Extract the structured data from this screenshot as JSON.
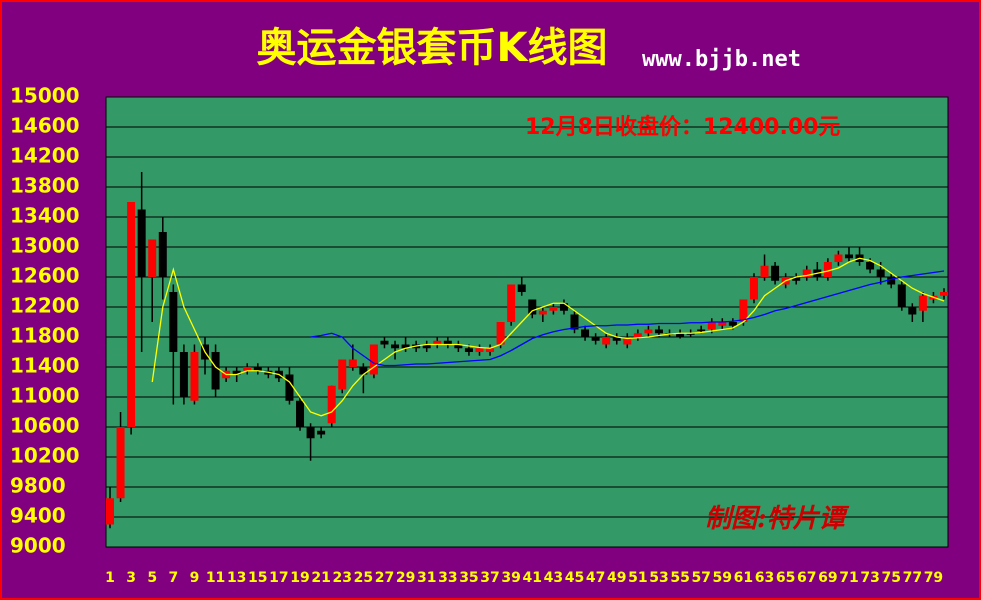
{
  "chart_data": {
    "type": "candlestick",
    "title": "奥运金银套币K线图",
    "subtitle": "www.bjjb.net",
    "annotations": [
      "12月8日收盘价：12400.00元",
      "制图:特片谭"
    ],
    "categories": [
      1,
      null,
      3,
      null,
      5,
      null,
      7,
      null,
      9,
      null,
      11,
      null,
      13,
      null,
      15,
      null,
      17,
      null,
      19,
      null,
      21,
      null,
      23,
      null,
      25,
      null,
      27,
      null,
      29,
      null,
      31,
      null,
      33,
      null,
      35,
      null,
      37,
      null,
      39,
      null,
      41,
      null,
      43,
      null,
      45,
      null,
      47,
      null,
      49,
      null,
      51,
      null,
      53,
      null,
      55,
      null,
      57,
      null,
      59,
      null,
      61,
      null,
      63,
      null,
      65,
      null,
      67,
      null,
      69,
      null,
      71,
      null,
      73,
      null,
      75,
      null,
      77,
      null,
      79,
      null
    ],
    "open": [
      9300,
      9650,
      10600,
      13500,
      12600,
      13200,
      12400,
      11600,
      10950,
      11700,
      11600,
      11250,
      11350,
      11350,
      11400,
      11350,
      11350,
      11300,
      10950,
      10600,
      10550,
      10650,
      11100,
      11400,
      11400,
      11300,
      11750,
      11700,
      11700,
      11700,
      11700,
      11700,
      11750,
      11700,
      11650,
      11600,
      11600,
      11700,
      12000,
      12500,
      12300,
      12100,
      12150,
      12250,
      12100,
      11900,
      11800,
      11700,
      11800,
      11700,
      11800,
      11850,
      11900,
      11850,
      11850,
      11850,
      11900,
      11900,
      11950,
      12000,
      12000,
      12300,
      12600,
      12750,
      12500,
      12600,
      12600,
      12700,
      12600,
      12800,
      12900,
      12900,
      12800,
      12700,
      12600,
      12500,
      12200,
      12150,
      12300,
      12350
    ],
    "high": [
      9800,
      10800,
      13600,
      14000,
      13100,
      13400,
      12500,
      11700,
      11700,
      11800,
      11700,
      11400,
      11400,
      11450,
      11450,
      11400,
      11400,
      11400,
      11000,
      10650,
      10600,
      11150,
      11500,
      11700,
      11450,
      11700,
      11800,
      11750,
      11800,
      11750,
      11750,
      11800,
      11800,
      11750,
      11700,
      11700,
      11700,
      12000,
      12500,
      12600,
      12300,
      12200,
      12250,
      12300,
      12150,
      11950,
      11850,
      11850,
      11850,
      11850,
      11900,
      11950,
      11950,
      11900,
      11900,
      11900,
      11950,
      12050,
      12050,
      12050,
      12300,
      12650,
      12900,
      12800,
      12650,
      12650,
      12750,
      12800,
      12850,
      12950,
      13000,
      13000,
      12850,
      12800,
      12650,
      12550,
      12250,
      12400,
      12400,
      12450
    ],
    "low": [
      9250,
      9600,
      10500,
      11600,
      12000,
      12300,
      10900,
      10900,
      10900,
      11300,
      11000,
      11200,
      11200,
      11300,
      11300,
      11250,
      11200,
      10900,
      10550,
      10150,
      10450,
      10600,
      11050,
      11350,
      11050,
      11250,
      11650,
      11500,
      11600,
      11600,
      11600,
      11650,
      11650,
      11600,
      11550,
      11550,
      11550,
      11650,
      11950,
      12350,
      12050,
      12000,
      12100,
      12100,
      11850,
      11750,
      11700,
      11650,
      11700,
      11650,
      11750,
      11800,
      11800,
      11800,
      11780,
      11800,
      11850,
      11850,
      11900,
      11900,
      11950,
      12250,
      12550,
      12500,
      12450,
      12500,
      12550,
      12550,
      12550,
      12750,
      12800,
      12750,
      12650,
      12500,
      12450,
      12150,
      12000,
      12000,
      12250,
      12300
    ],
    "close": [
      9650,
      10600,
      13600,
      12600,
      13100,
      12600,
      11600,
      11000,
      11600,
      11500,
      11100,
      11350,
      11300,
      11400,
      11350,
      11300,
      11250,
      10950,
      10600,
      10450,
      10500,
      11150,
      11500,
      11500,
      11300,
      11700,
      11700,
      11650,
      11650,
      11650,
      11650,
      11750,
      11700,
      11650,
      11600,
      11650,
      11650,
      12000,
      12500,
      12400,
      12100,
      12150,
      12200,
      12150,
      11900,
      11800,
      11750,
      11800,
      11750,
      11800,
      11850,
      11900,
      11850,
      11830,
      11800,
      11840,
      11880,
      12000,
      12000,
      11950,
      12300,
      12600,
      12750,
      12550,
      12600,
      12550,
      12700,
      12600,
      12800,
      12900,
      12850,
      12800,
      12700,
      12600,
      12500,
      12200,
      12100,
      12350,
      12350,
      12400
    ],
    "lines": [
      {
        "color": "#ffff00",
        "values": [
          null,
          null,
          null,
          null,
          11200,
          12200,
          12700,
          12200,
          11900,
          11600,
          11400,
          11300,
          11300,
          11350,
          11350,
          11330,
          11300,
          11200,
          11000,
          10800,
          10750,
          10800,
          10950,
          11150,
          11300,
          11400,
          11500,
          11600,
          11650,
          11680,
          11700,
          11700,
          11700,
          11700,
          11680,
          11660,
          11650,
          11700,
          11850,
          12000,
          12150,
          12200,
          12250,
          12250,
          12150,
          12050,
          11950,
          11850,
          11800,
          11780,
          11790,
          11800,
          11820,
          11840,
          11850,
          11850,
          11860,
          11880,
          11900,
          11920,
          12000,
          12150,
          12350,
          12450,
          12550,
          12600,
          12620,
          12650,
          12680,
          12720,
          12800,
          12850,
          12820,
          12750,
          12650,
          12550,
          12450,
          12380,
          12330,
          12280
        ]
      },
      {
        "color": "#0000ff",
        "values": [
          null,
          null,
          null,
          null,
          null,
          null,
          null,
          null,
          null,
          null,
          null,
          null,
          null,
          null,
          null,
          null,
          null,
          null,
          null,
          11800,
          11820,
          11850,
          11800,
          11650,
          11550,
          11450,
          11420,
          11420,
          11430,
          11440,
          11440,
          11450,
          11460,
          11470,
          11480,
          11490,
          11500,
          11550,
          11620,
          11700,
          11780,
          11830,
          11870,
          11900,
          11920,
          11940,
          11950,
          11950,
          11960,
          11960,
          11970,
          11970,
          11980,
          11980,
          11980,
          11990,
          11990,
          12000,
          12000,
          12010,
          12030,
          12060,
          12100,
          12150,
          12180,
          12220,
          12260,
          12300,
          12340,
          12380,
          12420,
          12460,
          12500,
          12530,
          12570,
          12600,
          12620,
          12640,
          12660,
          12680
        ]
      }
    ],
    "up_color": "#ff0000",
    "down_color": "#000000",
    "ylim": [
      9000,
      15000
    ],
    "yticks": [
      9000,
      9400,
      9800,
      10200,
      10600,
      11000,
      11400,
      11800,
      12200,
      12600,
      13000,
      13400,
      13800,
      14200,
      14600,
      15000
    ],
    "grid": true
  }
}
